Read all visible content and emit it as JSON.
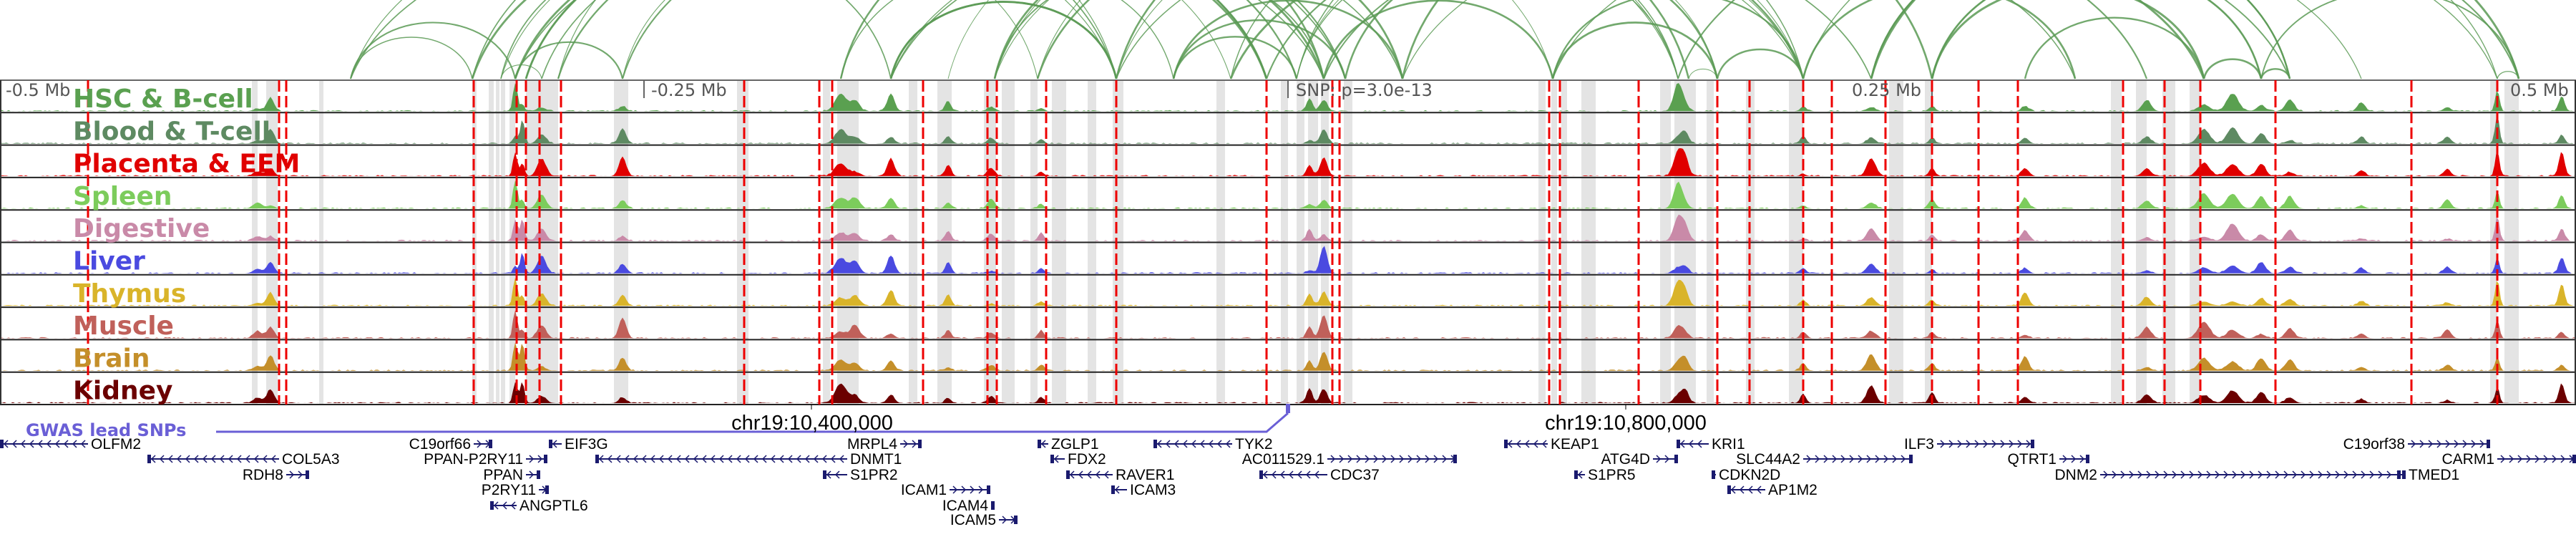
{
  "axis": {
    "left": "-0.5 Mb",
    "left_mid": "-0.25 Mb",
    "snp": "SNP: p=3.0e-13",
    "right_mid": "0.25 Mb",
    "right": "0.5 Mb"
  },
  "tracks": [
    {
      "name": "HSC & B-cell",
      "color": "#5aa050"
    },
    {
      "name": "Blood & T-cell",
      "color": "#5e8a62"
    },
    {
      "name": "Placenta & EEM",
      "color": "#e00000"
    },
    {
      "name": "Spleen",
      "color": "#7ccc5c"
    },
    {
      "name": "Digestive",
      "color": "#c98aa8"
    },
    {
      "name": "Liver",
      "color": "#4a4ae0"
    },
    {
      "name": "Thymus",
      "color": "#d9b42a"
    },
    {
      "name": "Muscle",
      "color": "#c0605a"
    },
    {
      "name": "Brain",
      "color": "#c48f2a"
    },
    {
      "name": "Kidney",
      "color": "#6b0000"
    }
  ],
  "colors": {
    "loop": "#5a9a55",
    "snp_line": "#ee0000",
    "gwas": "#6a5fd6",
    "gene": "#1a1a6e",
    "highlight": "#e4e4e4"
  },
  "gwas": {
    "label": "GWAS lead SNPs"
  },
  "coordinates": [
    "chr19:10,400,000",
    "chr19:10,800,000"
  ],
  "genes": [
    "OLFM2",
    "COL5A3",
    "RDH8",
    "C19orf66",
    "PPAN-P2RY11",
    "PPAN",
    "P2RY11",
    "ANGPTL6",
    "EIF3G",
    "DNMT1",
    "MRPL4",
    "S1PR2",
    "ICAM1",
    "ICAM4",
    "ICAM5",
    "ZGLP1",
    "FDX2",
    "RAVER1",
    "ICAM3",
    "TYK2",
    "AC011529.1",
    "CDC37",
    "KEAP1",
    "ATG4D",
    "S1PR5",
    "KRI1",
    "SLC44A2",
    "CDKN2D",
    "AP1M2",
    "ILF3",
    "QTRT1",
    "DNM2",
    "TMED1",
    "C19orf38",
    "CARM1"
  ]
}
